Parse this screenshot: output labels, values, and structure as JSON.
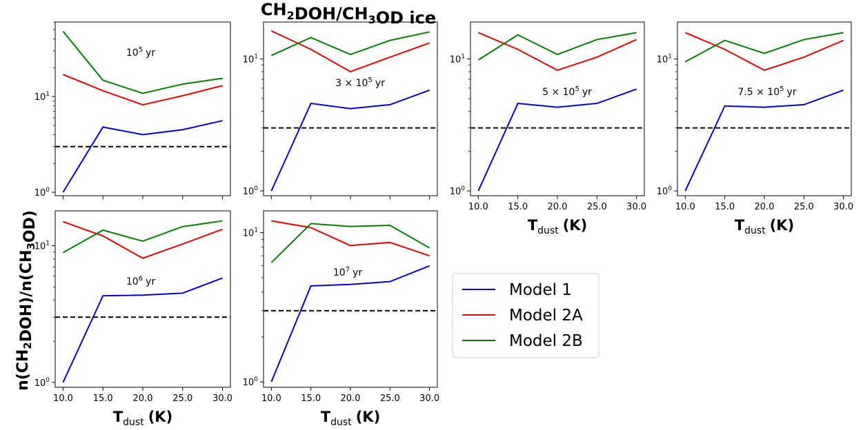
{
  "figure": {
    "title": "CH₂DOH/CH₃OD ice",
    "ylabel": "n(CH₂DOH)/n(CH₃OD)",
    "xlabel": "Tₙ",
    "xlabel_main": "T",
    "xlabel_sub": "dust",
    "xlabel_unit": "(K)"
  },
  "legend": {
    "placement": "center-right",
    "entries": [
      {
        "label": "Model 1",
        "color": "#0000dd"
      },
      {
        "label": "Model 2A",
        "color": "#ee0000"
      },
      {
        "label": "Model 2B",
        "color": "#008000"
      }
    ]
  },
  "chart_data": [
    {
      "type": "line",
      "yscale": "log",
      "annotation": {
        "base": "10",
        "exp": "5",
        "unit": "yr"
      },
      "x": [
        10,
        15,
        20,
        25,
        30
      ],
      "xticks": [
        "10.0",
        "15.0",
        "20.0",
        "25.0",
        "30.0"
      ],
      "show_xticklabels": false,
      "show_xlabel": false,
      "ylim": [
        0.92,
        60
      ],
      "yticks": [
        {
          "value": 1,
          "base": "10",
          "exp": "0"
        },
        {
          "value": 10,
          "base": "10",
          "exp": "1"
        }
      ],
      "reference_y": 3.0,
      "series": [
        {
          "name": "Model 1",
          "color": "#0000dd",
          "values": [
            1.0,
            4.8,
            4.0,
            4.5,
            5.6
          ]
        },
        {
          "name": "Model 2A",
          "color": "#ee0000",
          "values": [
            17.0,
            11.5,
            8.2,
            10.2,
            13.0
          ]
        },
        {
          "name": "Model 2B",
          "color": "#008000",
          "values": [
            48,
            14.8,
            10.8,
            13.5,
            15.5
          ]
        }
      ]
    },
    {
      "type": "line",
      "yscale": "log",
      "annotation": {
        "base": "3 × 10",
        "exp": "5",
        "unit": "yr"
      },
      "x": [
        10,
        15,
        20,
        25,
        30
      ],
      "xticks": [
        "10.0",
        "15.0",
        "20.0",
        "25.0",
        "30.0"
      ],
      "show_xticklabels": false,
      "show_xlabel": false,
      "ylim": [
        0.92,
        19
      ],
      "yticks": [
        {
          "value": 1,
          "base": "10",
          "exp": "0"
        },
        {
          "value": 10,
          "base": "10",
          "exp": "1"
        }
      ],
      "reference_y": 3.0,
      "series": [
        {
          "name": "Model 1",
          "color": "#0000dd",
          "values": [
            1.0,
            4.6,
            4.2,
            4.5,
            5.8
          ]
        },
        {
          "name": "Model 2A",
          "color": "#ee0000",
          "values": [
            16.3,
            11.8,
            8.0,
            10.3,
            13.2
          ]
        },
        {
          "name": "Model 2B",
          "color": "#008000",
          "values": [
            10.6,
            14.5,
            10.8,
            13.8,
            16.0
          ]
        }
      ]
    },
    {
      "type": "line",
      "yscale": "log",
      "annotation": {
        "base": "5 × 10",
        "exp": "5",
        "unit": "yr"
      },
      "x": [
        10,
        15,
        20,
        25,
        30
      ],
      "xticks": [
        "10.0",
        "15.0",
        "20.0",
        "25.0",
        "30.0"
      ],
      "show_xticklabels": true,
      "show_xlabel": true,
      "ylim": [
        0.92,
        19
      ],
      "yticks": [
        {
          "value": 1,
          "base": "10",
          "exp": "0"
        },
        {
          "value": 10,
          "base": "10",
          "exp": "1"
        }
      ],
      "reference_y": 3.0,
      "series": [
        {
          "name": "Model 1",
          "color": "#0000dd",
          "values": [
            1.0,
            4.6,
            4.3,
            4.6,
            5.9
          ]
        },
        {
          "name": "Model 2A",
          "color": "#ee0000",
          "values": [
            15.8,
            11.8,
            8.2,
            10.3,
            14.0
          ]
        },
        {
          "name": "Model 2B",
          "color": "#008000",
          "values": [
            9.8,
            15.2,
            10.8,
            14.0,
            15.8
          ]
        }
      ]
    },
    {
      "type": "line",
      "yscale": "log",
      "annotation": {
        "base": "7.5 × 10",
        "exp": "5",
        "unit": "yr"
      },
      "x": [
        10,
        15,
        20,
        25,
        30
      ],
      "xticks": [
        "10.0",
        "15.0",
        "20.0",
        "25.0",
        "30.0"
      ],
      "show_xticklabels": true,
      "show_xlabel": true,
      "ylim": [
        0.92,
        19
      ],
      "yticks": [
        {
          "value": 1,
          "base": "10",
          "exp": "0"
        },
        {
          "value": 10,
          "base": "10",
          "exp": "1"
        }
      ],
      "reference_y": 3.0,
      "series": [
        {
          "name": "Model 1",
          "color": "#0000dd",
          "values": [
            1.0,
            4.4,
            4.3,
            4.5,
            5.8
          ]
        },
        {
          "name": "Model 2A",
          "color": "#ee0000",
          "values": [
            15.8,
            11.8,
            8.2,
            10.3,
            13.8
          ]
        },
        {
          "name": "Model 2B",
          "color": "#008000",
          "values": [
            9.5,
            13.8,
            11.0,
            14.0,
            15.8
          ]
        }
      ]
    },
    {
      "type": "line",
      "yscale": "log",
      "annotation": {
        "base": "10",
        "exp": "6",
        "unit": "yr"
      },
      "x": [
        10,
        15,
        20,
        25,
        30
      ],
      "xticks": [
        "10.0",
        "15.0",
        "20.0",
        "25.0",
        "30.0"
      ],
      "show_xticklabels": true,
      "show_xlabel": true,
      "ylim": [
        0.92,
        18
      ],
      "yticks": [
        {
          "value": 1,
          "base": "10",
          "exp": "0"
        },
        {
          "value": 10,
          "base": "10",
          "exp": "1"
        }
      ],
      "reference_y": 3.0,
      "series": [
        {
          "name": "Model 1",
          "color": "#0000dd",
          "values": [
            1.0,
            4.3,
            4.35,
            4.5,
            5.8
          ]
        },
        {
          "name": "Model 2A",
          "color": "#ee0000",
          "values": [
            15.0,
            11.8,
            8.1,
            10.3,
            13.2
          ]
        },
        {
          "name": "Model 2B",
          "color": "#008000",
          "values": [
            8.9,
            13.0,
            10.8,
            13.8,
            15.2
          ]
        }
      ]
    },
    {
      "type": "line",
      "yscale": "log",
      "annotation": {
        "base": "10",
        "exp": "7",
        "unit": "yr"
      },
      "x": [
        10,
        15,
        20,
        25,
        30
      ],
      "xticks": [
        "10.0",
        "15.0",
        "20.0",
        "25.0",
        "30.0"
      ],
      "show_xticklabels": true,
      "show_xlabel": true,
      "ylim": [
        0.92,
        14
      ],
      "yticks": [
        {
          "value": 1,
          "base": "10",
          "exp": "0"
        },
        {
          "value": 10,
          "base": "10",
          "exp": "1"
        }
      ],
      "reference_y": 3.0,
      "series": [
        {
          "name": "Model 1",
          "color": "#0000dd",
          "values": [
            1.0,
            4.4,
            4.5,
            4.7,
            6.0
          ]
        },
        {
          "name": "Model 2A",
          "color": "#ee0000",
          "values": [
            12.0,
            10.8,
            8.2,
            8.6,
            7.0
          ]
        },
        {
          "name": "Model 2B",
          "color": "#008000",
          "values": [
            6.3,
            11.5,
            11.0,
            11.2,
            7.9
          ]
        }
      ]
    }
  ]
}
